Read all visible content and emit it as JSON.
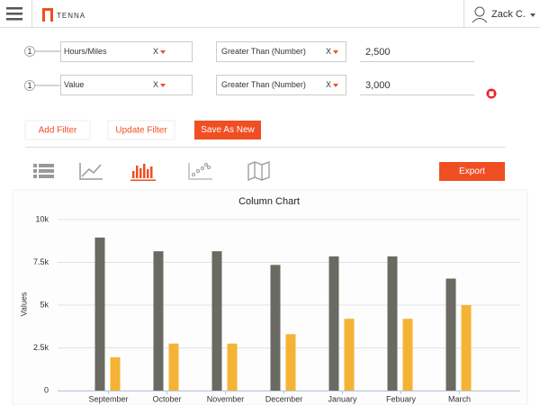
{
  "header": {
    "logo": "TENNA",
    "user": "Zack C."
  },
  "filters": [
    {
      "index": "1",
      "field": "Hours/Miles",
      "field_clear": "X",
      "operator": "Greater Than (Number)",
      "operator_clear": "X",
      "value": "2,500"
    },
    {
      "index": "1",
      "field": "Value",
      "field_clear": "X",
      "operator": "Greater Than (Number)",
      "operator_clear": "X",
      "value": "3,000"
    }
  ],
  "buttons": {
    "add": "Add Filter",
    "update": "Update Filter",
    "save": "Save As New",
    "export": "Export"
  },
  "chart_data": {
    "type": "bar",
    "title": "Column Chart",
    "y_label": "Values",
    "categories": [
      "September",
      "October",
      "November",
      "December",
      "January",
      "Febuary",
      "March"
    ],
    "series": [
      {
        "color": "#6b6a62",
        "values": [
          8950,
          8150,
          8150,
          7350,
          7850,
          7850,
          6550
        ]
      },
      {
        "color": "#f5b335",
        "values": [
          1950,
          2750,
          2750,
          3300,
          4200,
          4200,
          5000
        ]
      }
    ],
    "ylim": [
      0,
      10000
    ],
    "yticks": [
      0,
      {
        "value": 2500,
        "label": "2.5k"
      },
      {
        "value": 5000,
        "label": "5k"
      },
      {
        "value": 7500,
        "label": "7.5k"
      },
      {
        "value": 10000,
        "label": "10k"
      }
    ],
    "grid": true
  }
}
